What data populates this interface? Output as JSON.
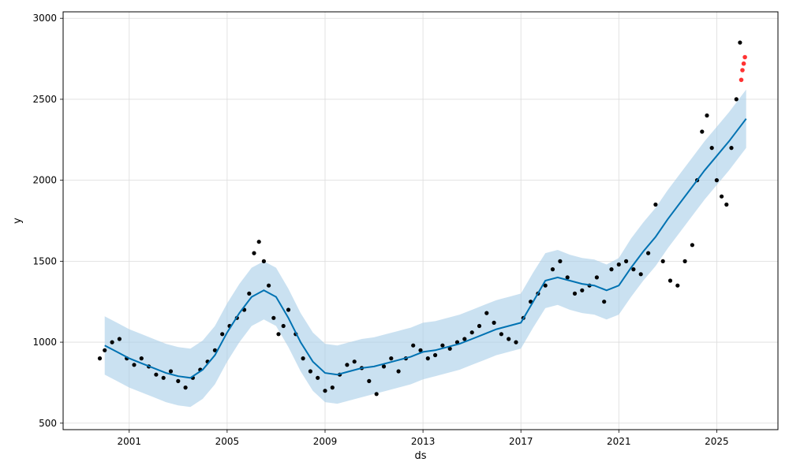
{
  "chart_data": {
    "type": "scatter",
    "title": "",
    "xlabel": "ds",
    "ylabel": "y",
    "x_range": [
      1998.3,
      2027.5
    ],
    "ylim": [
      460,
      3040
    ],
    "x_ticks": [
      2001,
      2005,
      2009,
      2013,
      2017,
      2021,
      2025
    ],
    "x_tick_labels": [
      "2001",
      "2005",
      "2009",
      "2013",
      "2017",
      "2021",
      "2025"
    ],
    "y_ticks": [
      500,
      1000,
      1500,
      2000,
      2500,
      3000
    ],
    "y_tick_labels": [
      "500",
      "1000",
      "1500",
      "2000",
      "2500",
      "3000"
    ],
    "grid": true,
    "colors": {
      "observed": "#000000",
      "forecast_line": "#0072B2",
      "uncertainty_band": "#a6cde8",
      "recent": "#ff0000"
    },
    "forecast": {
      "x": [
        2000.0,
        2000.5,
        2001.0,
        2001.5,
        2002.0,
        2002.5,
        2003.0,
        2003.5,
        2004.0,
        2004.5,
        2005.0,
        2005.5,
        2006.0,
        2006.5,
        2007.0,
        2007.5,
        2008.0,
        2008.5,
        2009.0,
        2009.5,
        2010.0,
        2010.5,
        2011.0,
        2011.5,
        2012.0,
        2012.5,
        2013.0,
        2013.5,
        2014.0,
        2014.5,
        2015.0,
        2015.5,
        2016.0,
        2016.5,
        2017.0,
        2017.5,
        2018.0,
        2018.5,
        2019.0,
        2019.5,
        2020.0,
        2020.5,
        2021.0,
        2021.5,
        2022.0,
        2022.5,
        2023.0,
        2023.5,
        2024.0,
        2024.5,
        2025.0,
        2025.5,
        2026.0,
        2026.2
      ],
      "yhat": [
        980,
        940,
        900,
        870,
        840,
        810,
        790,
        780,
        830,
        920,
        1060,
        1180,
        1280,
        1320,
        1280,
        1150,
        1000,
        880,
        810,
        800,
        820,
        840,
        850,
        870,
        890,
        910,
        940,
        950,
        970,
        990,
        1020,
        1050,
        1080,
        1100,
        1120,
        1250,
        1380,
        1400,
        1380,
        1360,
        1350,
        1320,
        1350,
        1460,
        1560,
        1650,
        1760,
        1860,
        1960,
        2060,
        2150,
        2240,
        2340,
        2380
      ],
      "lower": [
        800,
        760,
        720,
        690,
        660,
        630,
        610,
        600,
        650,
        740,
        880,
        1000,
        1100,
        1140,
        1100,
        970,
        820,
        700,
        630,
        620,
        640,
        660,
        680,
        700,
        720,
        740,
        770,
        790,
        810,
        830,
        860,
        890,
        920,
        940,
        960,
        1090,
        1210,
        1230,
        1200,
        1180,
        1170,
        1140,
        1170,
        1280,
        1380,
        1470,
        1580,
        1680,
        1780,
        1880,
        1970,
        2060,
        2160,
        2200
      ],
      "upper": [
        1160,
        1120,
        1080,
        1050,
        1020,
        990,
        970,
        960,
        1010,
        1100,
        1240,
        1360,
        1460,
        1500,
        1460,
        1330,
        1180,
        1060,
        990,
        980,
        1000,
        1020,
        1030,
        1050,
        1070,
        1090,
        1120,
        1130,
        1150,
        1170,
        1200,
        1230,
        1260,
        1280,
        1300,
        1430,
        1550,
        1570,
        1540,
        1520,
        1510,
        1480,
        1520,
        1640,
        1740,
        1830,
        1940,
        2040,
        2140,
        2240,
        2330,
        2420,
        2520,
        2560
      ]
    },
    "observed": {
      "x": [
        1999.8,
        2000.0,
        2000.3,
        2000.6,
        2000.9,
        2001.2,
        2001.5,
        2001.8,
        2002.1,
        2002.4,
        2002.7,
        2003.0,
        2003.3,
        2003.6,
        2003.9,
        2004.2,
        2004.5,
        2004.8,
        2005.1,
        2005.4,
        2005.7,
        2005.9,
        2006.1,
        2006.3,
        2006.5,
        2006.7,
        2006.9,
        2007.1,
        2007.3,
        2007.5,
        2007.8,
        2008.1,
        2008.4,
        2008.7,
        2009.0,
        2009.3,
        2009.6,
        2009.9,
        2010.2,
        2010.5,
        2010.8,
        2011.1,
        2011.4,
        2011.7,
        2012.0,
        2012.3,
        2012.6,
        2012.9,
        2013.2,
        2013.5,
        2013.8,
        2014.1,
        2014.4,
        2014.7,
        2015.0,
        2015.3,
        2015.6,
        2015.9,
        2016.2,
        2016.5,
        2016.8,
        2017.1,
        2017.4,
        2017.7,
        2018.0,
        2018.3,
        2018.6,
        2018.9,
        2019.2,
        2019.5,
        2019.8,
        2020.1,
        2020.4,
        2020.7,
        2021.0,
        2021.3,
        2021.6,
        2021.9,
        2022.2,
        2022.5,
        2022.8,
        2023.1,
        2023.4,
        2023.7,
        2024.0,
        2024.2,
        2024.4,
        2024.6,
        2024.8,
        2025.0,
        2025.2,
        2025.4,
        2025.6,
        2025.8,
        2025.95
      ],
      "y": [
        900,
        950,
        1000,
        1020,
        900,
        860,
        900,
        850,
        800,
        780,
        820,
        760,
        720,
        780,
        830,
        880,
        950,
        1050,
        1100,
        1150,
        1200,
        1300,
        1550,
        1620,
        1500,
        1350,
        1150,
        1050,
        1100,
        1200,
        1050,
        900,
        820,
        780,
        700,
        720,
        800,
        860,
        880,
        840,
        760,
        680,
        850,
        900,
        820,
        900,
        980,
        950,
        900,
        920,
        980,
        960,
        1000,
        1020,
        1060,
        1100,
        1180,
        1120,
        1050,
        1020,
        1000,
        1150,
        1250,
        1300,
        1350,
        1450,
        1500,
        1400,
        1300,
        1320,
        1350,
        1400,
        1250,
        1450,
        1480,
        1500,
        1450,
        1420,
        1550,
        1850,
        1500,
        1380,
        1350,
        1500,
        1600,
        2000,
        2300,
        2400,
        2200,
        2000,
        1900,
        1850,
        2200,
        2500,
        2850
      ]
    },
    "recent": {
      "x": [
        2026.0,
        2026.05,
        2026.1,
        2026.15
      ],
      "y": [
        2620,
        2680,
        2720,
        2760
      ]
    }
  }
}
